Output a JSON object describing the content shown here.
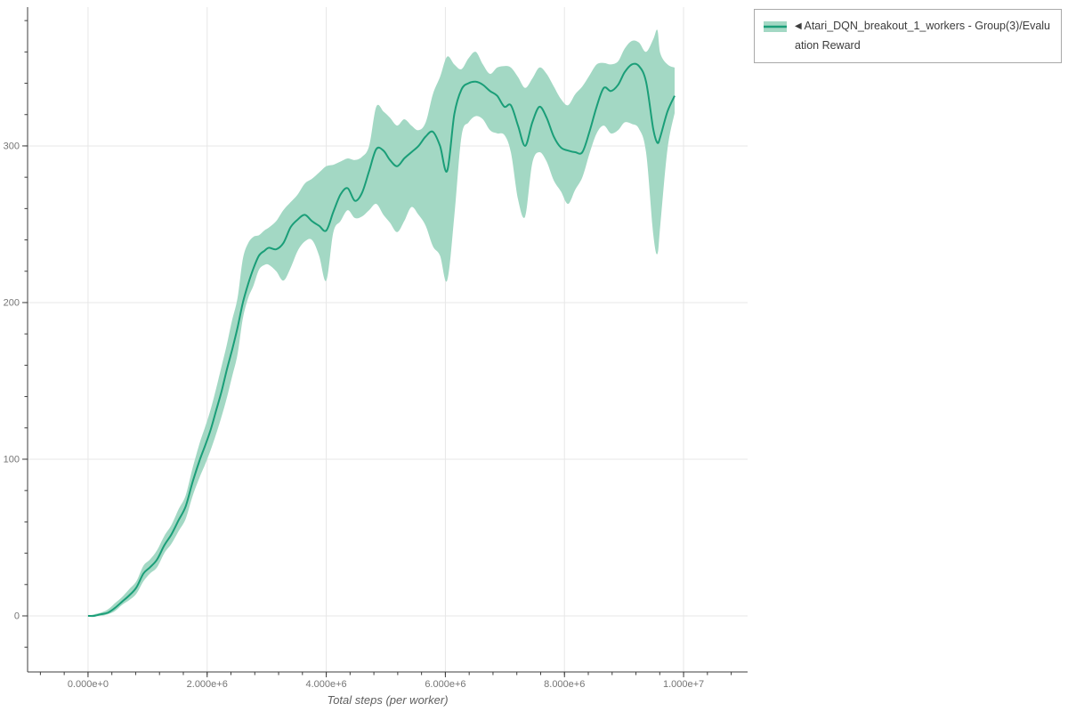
{
  "page": {
    "background": "#ffffff"
  },
  "legend": {
    "marker": "◀",
    "series_name": "Atari_DQN_breakout_1_workers - Group(3)/Evaluation Reward",
    "visible_wrap": [
      "◀ Atari_DQN_breakout_1_workers - Group(3)/Evaluati",
      "on Reward"
    ]
  },
  "colors": {
    "line": "#1a9e78",
    "band": "#a3d8c4",
    "grid": "#e7e7e7",
    "axis": "#3c3c3c",
    "tick_label": "#757575",
    "axis_title": "#606060",
    "legend_border": "#a9a9a9",
    "legend_text": "#3c3c3c"
  },
  "chart_data": {
    "type": "line",
    "title": "",
    "xlabel": "Total steps (per worker)",
    "ylabel": "",
    "grid": true,
    "legend_position": "top-right-outside",
    "xlim_e6": [
      -1.015,
      11.075
    ],
    "ylim": [
      -35.8,
      388.6
    ],
    "x_major_ticks_e6": [
      0,
      2,
      4,
      6,
      8,
      10
    ],
    "x_major_labels": [
      "0.000e+0",
      "2.000e+6",
      "4.000e+6",
      "6.000e+6",
      "8.000e+6",
      "1.000e+7"
    ],
    "x_minor_range_e6": [
      -0.8,
      10.8
    ],
    "x_minor_step_e6": 0.4,
    "y_major_ticks": [
      0,
      100,
      200,
      300
    ],
    "y_major_labels": [
      "0",
      "100",
      "200",
      "300"
    ],
    "y_minor_range": [
      -20,
      380
    ],
    "y_minor_step": 20,
    "series": [
      {
        "name": "Atari_DQN_breakout_1_workers - Group(3)/Evaluation Reward",
        "line_color": "#1a9e78",
        "band_color": "#a3d8c4",
        "x_e6": [
          0.0,
          0.1,
          0.21,
          0.33,
          0.45,
          0.57,
          0.69,
          0.81,
          0.93,
          1.04,
          1.16,
          1.28,
          1.4,
          1.52,
          1.64,
          1.76,
          1.88,
          1.97,
          2.06,
          2.15,
          2.24,
          2.33,
          2.42,
          2.51,
          2.6,
          2.69,
          2.78,
          2.87,
          2.96,
          3.04,
          3.16,
          3.28,
          3.4,
          3.52,
          3.64,
          3.76,
          3.88,
          4.0,
          4.12,
          4.24,
          4.36,
          4.48,
          4.6,
          4.72,
          4.84,
          4.96,
          5.07,
          5.19,
          5.31,
          5.43,
          5.55,
          5.67,
          5.79,
          5.91,
          6.03,
          6.15,
          6.27,
          6.39,
          6.51,
          6.63,
          6.75,
          6.87,
          6.99,
          7.1,
          7.22,
          7.34,
          7.46,
          7.58,
          7.7,
          7.82,
          7.94,
          8.06,
          8.18,
          8.3,
          8.42,
          8.54,
          8.66,
          8.78,
          8.9,
          9.01,
          9.13,
          9.25,
          9.37,
          9.49,
          9.56,
          9.61,
          9.73,
          9.85
        ],
        "mean": [
          0,
          0,
          1,
          2,
          5,
          9,
          13,
          18,
          27,
          31,
          36,
          45,
          52,
          61,
          70,
          86,
          100,
          109,
          119,
          131,
          143,
          157,
          170,
          184,
          200,
          212,
          222,
          230,
          233,
          235,
          234,
          238,
          248,
          253,
          256,
          252,
          249,
          246,
          258,
          269,
          273,
          265,
          270,
          284,
          298,
          297,
          291,
          287,
          292,
          296,
          300,
          306,
          309,
          300,
          284,
          320,
          336,
          340,
          341,
          339,
          335,
          332,
          325,
          326,
          313,
          300,
          315,
          325,
          318,
          306,
          299,
          297,
          296,
          296,
          309,
          325,
          337,
          335,
          339,
          347,
          352,
          351,
          341,
          311,
          302,
          306,
          322,
          332
        ],
        "lo": [
          0,
          0,
          0,
          1,
          3,
          7,
          10,
          14,
          22,
          27,
          31,
          40,
          46,
          54,
          62,
          77,
          89,
          97,
          106,
          116,
          127,
          139,
          153,
          167,
          190,
          203,
          211,
          221,
          224,
          224,
          220,
          214,
          222,
          233,
          239,
          240,
          230,
          214,
          245,
          252,
          259,
          254,
          255,
          259,
          263,
          256,
          251,
          245,
          252,
          261,
          256,
          249,
          236,
          230,
          214,
          255,
          306,
          315,
          319,
          317,
          310,
          308,
          307,
          296,
          266,
          255,
          289,
          296,
          290,
          278,
          271,
          263,
          272,
          280,
          295,
          308,
          313,
          308,
          310,
          315,
          314,
          311,
          296,
          244,
          231,
          250,
          298,
          321
        ],
        "hi": [
          0,
          1,
          2,
          4,
          8,
          12,
          17,
          22,
          32,
          36,
          42,
          51,
          58,
          68,
          77,
          95,
          111,
          121,
          132,
          145,
          159,
          173,
          189,
          203,
          228,
          238,
          242,
          243,
          246,
          248,
          252,
          259,
          264,
          269,
          276,
          279,
          283,
          287,
          288,
          290,
          292,
          291,
          293,
          300,
          325,
          322,
          318,
          313,
          317,
          313,
          310,
          315,
          333,
          344,
          357,
          352,
          349,
          356,
          360,
          352,
          346,
          350,
          351,
          350,
          344,
          337,
          343,
          350,
          346,
          338,
          330,
          326,
          333,
          338,
          345,
          352,
          353,
          352,
          354,
          362,
          367,
          366,
          360,
          368,
          374,
          359,
          352,
          350
        ]
      }
    ]
  }
}
